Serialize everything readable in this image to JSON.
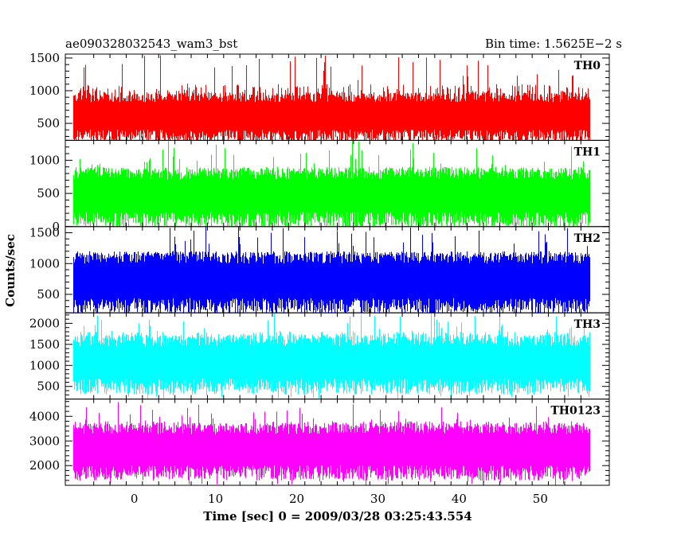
{
  "chart_data": {
    "type": "line",
    "title_left": "ae090328032543_wam3_bst",
    "title_right": "Bin time: 1.5625E−2 s",
    "xlabel": "Time [sec] 0 = 2009/03/28 03:25:43.554",
    "ylabel": "Counts/sec",
    "xlim": [
      -8.5,
      58.5
    ],
    "data_x_range": [
      -7.5,
      56
    ],
    "x_ticks": [
      "0",
      "10",
      "20",
      "30",
      "40",
      "50"
    ],
    "panels": [
      {
        "name": "TH0",
        "color": "#ff0000",
        "ylim": [
          240,
          1560
        ],
        "y_ticks": [
          "500",
          "1000",
          "1500"
        ],
        "typical_band": [
          300,
          900
        ],
        "peak_range": [
          1100,
          1560
        ]
      },
      {
        "name": "TH1",
        "color": "#00ff00",
        "ylim": [
          0,
          1300
        ],
        "y_ticks": [
          "0",
          "500",
          "1000"
        ],
        "typical_band": [
          100,
          800
        ],
        "peak_range": [
          900,
          1300
        ]
      },
      {
        "name": "TH2",
        "color": "#0000ff",
        "ylim": [
          200,
          1600
        ],
        "y_ticks": [
          "500",
          "1000",
          "1500"
        ],
        "typical_band": [
          300,
          1100
        ],
        "peak_range": [
          1200,
          1600
        ]
      },
      {
        "name": "TH3",
        "color": "#00ffff",
        "ylim": [
          200,
          2250
        ],
        "y_ticks": [
          "500",
          "1000",
          "1500",
          "2000"
        ],
        "typical_band": [
          500,
          1600
        ],
        "peak_range": [
          1800,
          2250
        ]
      },
      {
        "name": "TH0123",
        "color": "#ff00ff",
        "ylim": [
          1200,
          4700
        ],
        "y_ticks": [
          "2000",
          "3000",
          "4000"
        ],
        "typical_band": [
          1700,
          3500
        ],
        "peak_range": [
          3800,
          4600
        ]
      }
    ]
  }
}
